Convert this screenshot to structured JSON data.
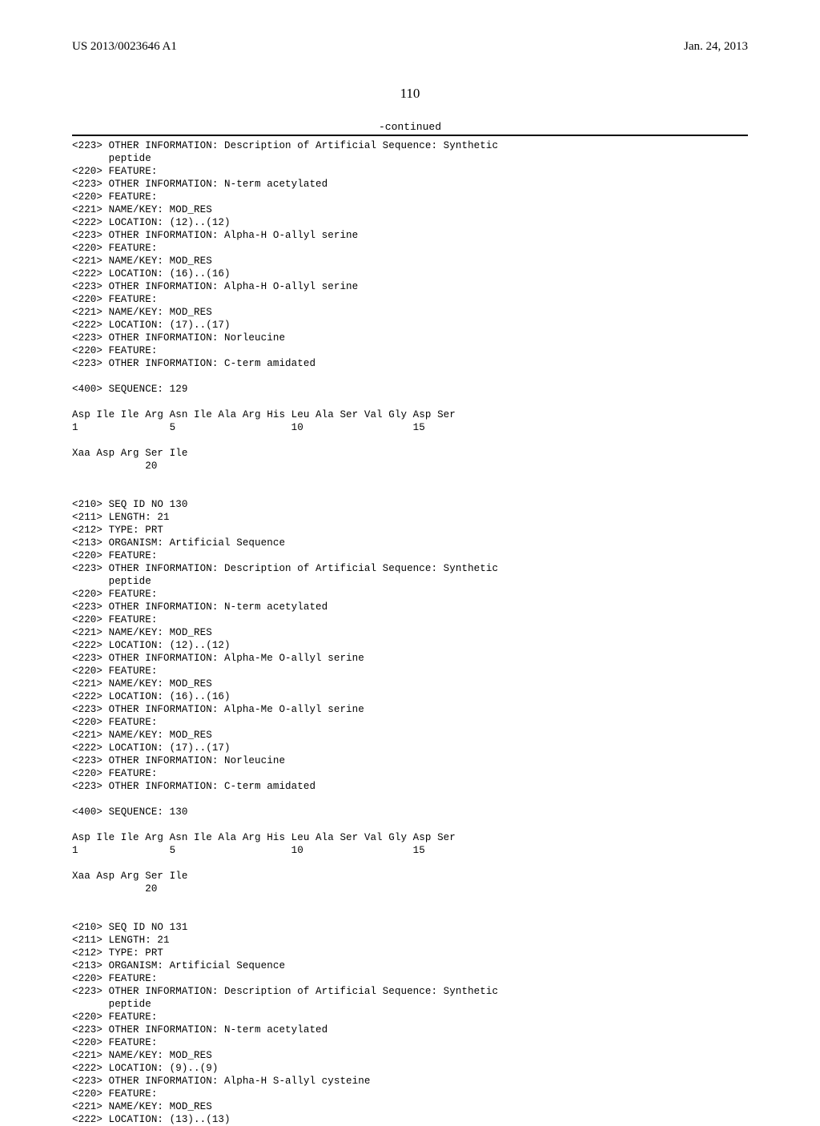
{
  "header": {
    "pub_number": "US 2013/0023646 A1",
    "pub_date": "Jan. 24, 2013"
  },
  "page_number": "110",
  "continued_label": "-continued",
  "listing_text": "<223> OTHER INFORMATION: Description of Artificial Sequence: Synthetic\n      peptide\n<220> FEATURE:\n<223> OTHER INFORMATION: N-term acetylated\n<220> FEATURE:\n<221> NAME/KEY: MOD_RES\n<222> LOCATION: (12)..(12)\n<223> OTHER INFORMATION: Alpha-H O-allyl serine\n<220> FEATURE:\n<221> NAME/KEY: MOD_RES\n<222> LOCATION: (16)..(16)\n<223> OTHER INFORMATION: Alpha-H O-allyl serine\n<220> FEATURE:\n<221> NAME/KEY: MOD_RES\n<222> LOCATION: (17)..(17)\n<223> OTHER INFORMATION: Norleucine\n<220> FEATURE:\n<223> OTHER INFORMATION: C-term amidated\n\n<400> SEQUENCE: 129\n\nAsp Ile Ile Arg Asn Ile Ala Arg His Leu Ala Ser Val Gly Asp Ser\n1               5                   10                  15\n\nXaa Asp Arg Ser Ile\n            20\n\n\n<210> SEQ ID NO 130\n<211> LENGTH: 21\n<212> TYPE: PRT\n<213> ORGANISM: Artificial Sequence\n<220> FEATURE:\n<223> OTHER INFORMATION: Description of Artificial Sequence: Synthetic\n      peptide\n<220> FEATURE:\n<223> OTHER INFORMATION: N-term acetylated\n<220> FEATURE:\n<221> NAME/KEY: MOD_RES\n<222> LOCATION: (12)..(12)\n<223> OTHER INFORMATION: Alpha-Me O-allyl serine\n<220> FEATURE:\n<221> NAME/KEY: MOD_RES\n<222> LOCATION: (16)..(16)\n<223> OTHER INFORMATION: Alpha-Me O-allyl serine\n<220> FEATURE:\n<221> NAME/KEY: MOD_RES\n<222> LOCATION: (17)..(17)\n<223> OTHER INFORMATION: Norleucine\n<220> FEATURE:\n<223> OTHER INFORMATION: C-term amidated\n\n<400> SEQUENCE: 130\n\nAsp Ile Ile Arg Asn Ile Ala Arg His Leu Ala Ser Val Gly Asp Ser\n1               5                   10                  15\n\nXaa Asp Arg Ser Ile\n            20\n\n\n<210> SEQ ID NO 131\n<211> LENGTH: 21\n<212> TYPE: PRT\n<213> ORGANISM: Artificial Sequence\n<220> FEATURE:\n<223> OTHER INFORMATION: Description of Artificial Sequence: Synthetic\n      peptide\n<220> FEATURE:\n<223> OTHER INFORMATION: N-term acetylated\n<220> FEATURE:\n<221> NAME/KEY: MOD_RES\n<222> LOCATION: (9)..(9)\n<223> OTHER INFORMATION: Alpha-H S-allyl cysteine\n<220> FEATURE:\n<221> NAME/KEY: MOD_RES\n<222> LOCATION: (13)..(13)"
}
